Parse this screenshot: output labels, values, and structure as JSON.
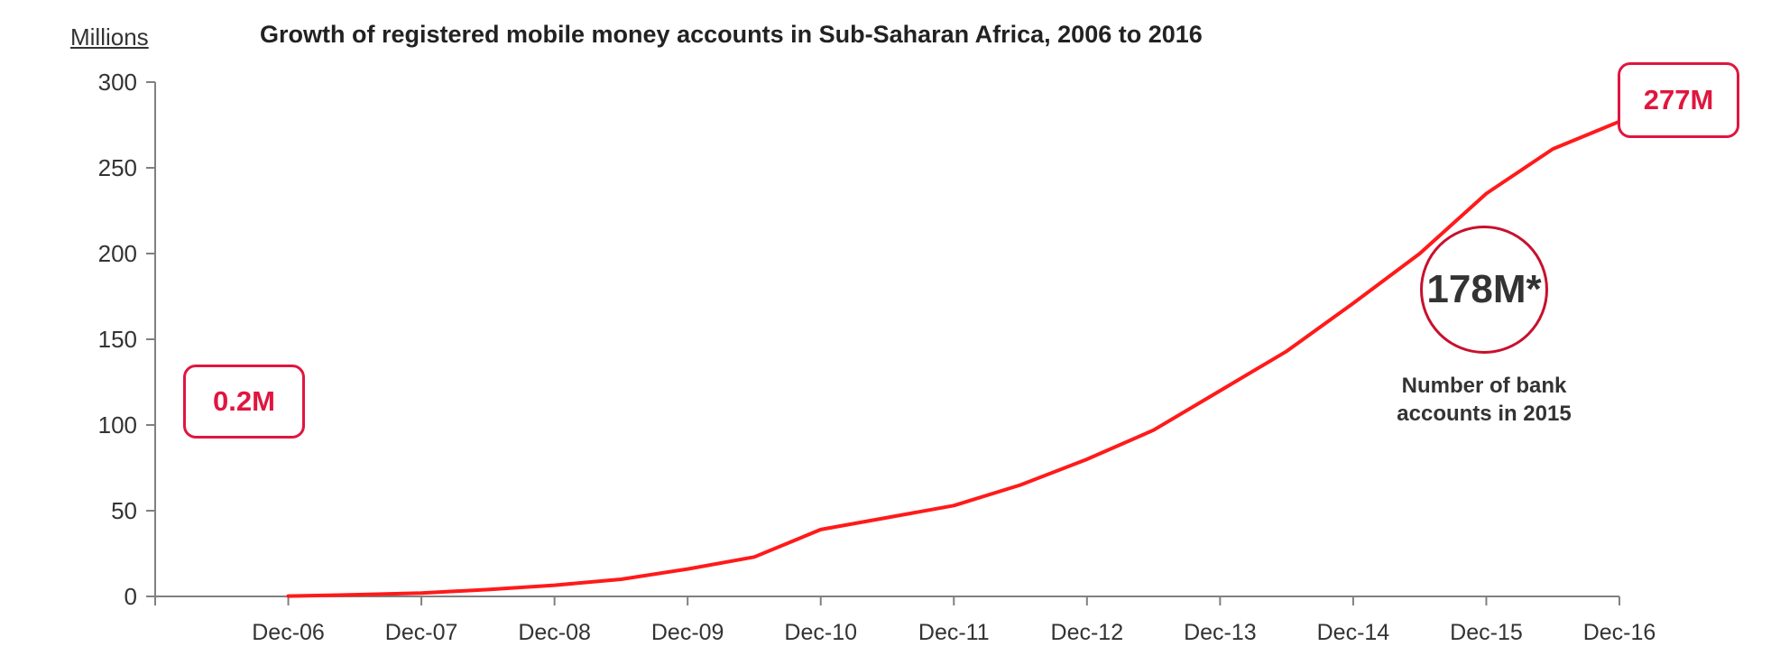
{
  "header": {
    "unit_label": "Millions",
    "title": "Growth of registered mobile money accounts in Sub-Saharan Africa, 2006 to 2016"
  },
  "callouts": {
    "start_value": "0.2M",
    "end_value": "277M",
    "bank_accounts_value": "178M*",
    "bank_accounts_note": "Number of bank accounts in 2015"
  },
  "colors": {
    "series_line": "#ff1a1a",
    "callout_accent": "#e0163f",
    "axis": "#808080",
    "text": "#333333"
  },
  "chart_data": {
    "type": "line",
    "title": "Growth of registered mobile money accounts in Sub-Saharan Africa, 2006 to 2016",
    "xlabel": "",
    "ylabel": "Millions",
    "x_tick_labels": [
      "Dec-06",
      "Dec-07",
      "Dec-08",
      "Dec-09",
      "Dec-10",
      "Dec-11",
      "Dec-12",
      "Dec-13",
      "Dec-14",
      "Dec-15",
      "Dec-16"
    ],
    "x_range": [
      "Dec-05",
      "Dec-16"
    ],
    "y_ticks": [
      0,
      50,
      100,
      150,
      200,
      250,
      300
    ],
    "ylim": [
      0,
      300
    ],
    "grid": false,
    "series": [
      {
        "x": [
          "Dec-06",
          "Jun-07",
          "Dec-07",
          "Jun-08",
          "Dec-08",
          "Jun-09",
          "Dec-09",
          "Jun-10",
          "Dec-10",
          "Jun-11",
          "Dec-11",
          "Jun-12",
          "Dec-12",
          "Jun-13",
          "Dec-13",
          "Jun-14",
          "Dec-14",
          "Jun-15",
          "Dec-15",
          "Jun-16",
          "Dec-16"
        ],
        "values": [
          0.2,
          1,
          2,
          4,
          6.5,
          10,
          16,
          23,
          39,
          46,
          53,
          65,
          80,
          97,
          120,
          143,
          171,
          200,
          235,
          261,
          277
        ]
      }
    ]
  }
}
